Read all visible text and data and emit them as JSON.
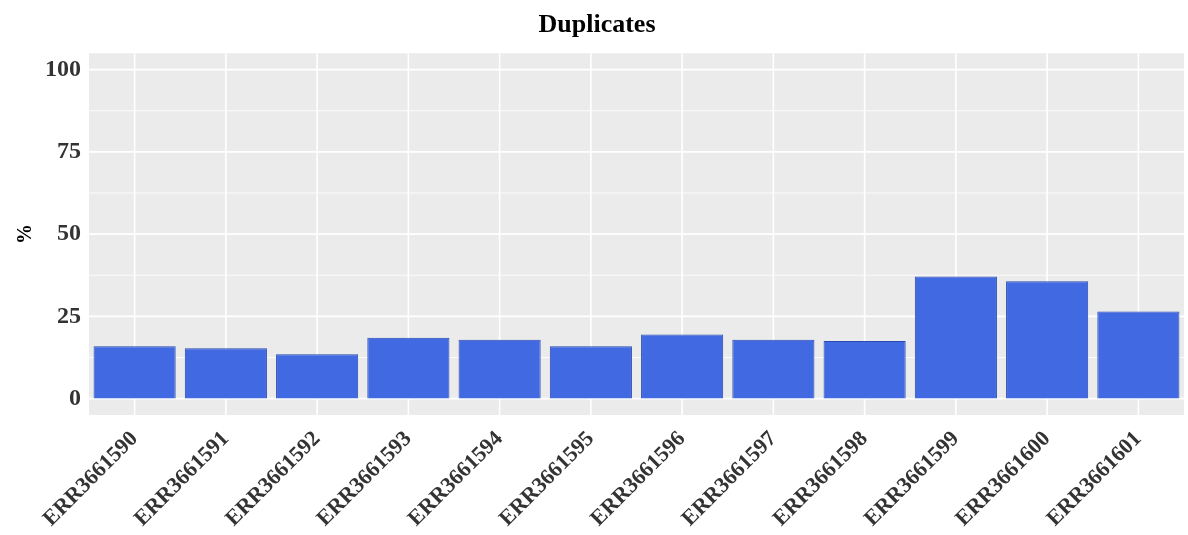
{
  "chart_data": {
    "type": "bar",
    "title": "Duplicates",
    "ylabel": "%",
    "categories": [
      "ERR3661590",
      "ERR3661591",
      "ERR3661592",
      "ERR3661593",
      "ERR3661594",
      "ERR3661595",
      "ERR3661596",
      "ERR3661597",
      "ERR3661598",
      "ERR3661599",
      "ERR3661600",
      "ERR3661601"
    ],
    "values": [
      15.9,
      15.3,
      13.5,
      18.5,
      17.9,
      15.9,
      19.5,
      17.9,
      17.5,
      37.1,
      35.7,
      26.5
    ],
    "color": "#4169e1",
    "ylim": [
      -5,
      105
    ],
    "yticks": [
      0,
      25,
      50,
      75,
      100
    ],
    "grid": true,
    "legend": false
  }
}
